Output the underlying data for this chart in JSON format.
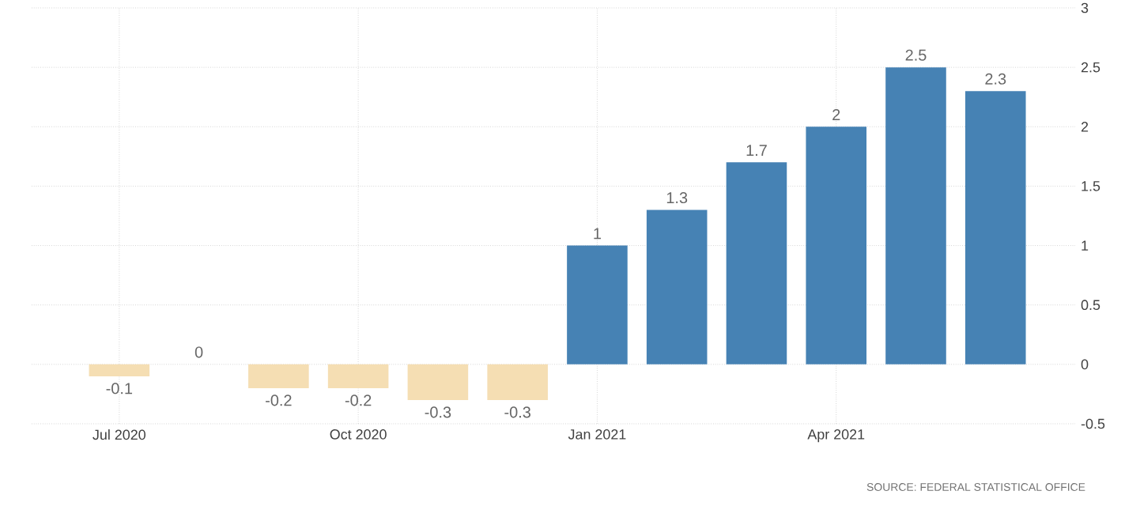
{
  "chart_data": {
    "type": "bar",
    "categories": [
      "Jul 2020",
      null,
      null,
      "Oct 2020",
      null,
      null,
      "Jan 2021",
      null,
      null,
      "Apr 2021",
      null,
      null
    ],
    "values": [
      -0.1,
      0,
      -0.2,
      -0.2,
      -0.3,
      -0.3,
      1,
      1.3,
      1.7,
      2,
      2.5,
      2.3
    ],
    "colors": [
      "#f5deb3",
      "#f5deb3",
      "#f5deb3",
      "#f5deb3",
      "#f5deb3",
      "#f5deb3",
      "#4682b4",
      "#4682b4",
      "#4682b4",
      "#4682b4",
      "#4682b4",
      "#4682b4"
    ],
    "ylim": [
      -0.5,
      3
    ],
    "yticks": [
      -0.5,
      0,
      0.5,
      1,
      1.5,
      2,
      2.5,
      3
    ],
    "grid": true,
    "data_labels": true,
    "annotations": [
      "SOURCE: FEDERAL STATISTICAL OFFICE"
    ]
  }
}
